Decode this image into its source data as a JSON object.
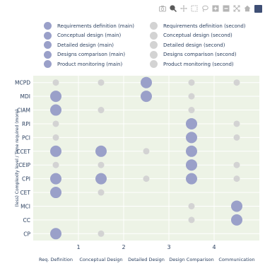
{
  "modebar": {
    "icons": [
      "camera-icon",
      "zoom-icon",
      "pan-icon",
      "zoom-box-icon",
      "lasso-icon",
      "zoom-in-icon",
      "zoom-out-icon",
      "autoscale-icon",
      "home-icon",
      "plotly-logo-icon"
    ]
  },
  "colors": {
    "main": "#9aa0c9",
    "second": "#d3d3d3",
    "plot_bg": "#edf3e6",
    "grid": "#ffffff",
    "text": "#2a3f5f"
  },
  "legend": {
    "main": [
      "Requirements definition (main)",
      "Conceptual design (main)",
      "Detailed design (main)",
      "Designs comparison (main)",
      "Product monitoring (main)"
    ],
    "second": [
      "Requirements definition (second)",
      "Conceptual design (second)",
      "Detailed design (second)",
      "Designs comparison (second)",
      "Product monitoring (second)"
    ]
  },
  "chart_data": {
    "type": "scatter",
    "ylabel": "(less)     Complexity level  /  Time required    (more)",
    "x_tick_values": [
      "1",
      "2",
      "3",
      "4"
    ],
    "x_categories": [
      "Req. Definition",
      "Conceptual Design",
      "Detailed Design",
      "Design Comparison",
      "Communication"
    ],
    "x_category_positions": [
      0.5,
      1.5,
      2.5,
      3.5,
      4.5
    ],
    "xlim": [
      0,
      5
    ],
    "y_categories": [
      "CP",
      "CC",
      "MCI",
      "CET",
      "CPI",
      "CEIP",
      "CCET",
      "PCI",
      "RPI",
      "CIAM",
      "MDI",
      "MCPD"
    ],
    "points": [
      {
        "y": "MCPD",
        "x": 0.5,
        "kind": "second"
      },
      {
        "y": "MCPD",
        "x": 1.5,
        "kind": "second"
      },
      {
        "y": "MCPD",
        "x": 2.5,
        "kind": "main"
      },
      {
        "y": "MCPD",
        "x": 3.5,
        "kind": "second"
      },
      {
        "y": "MCPD",
        "x": 4.5,
        "kind": "second"
      },
      {
        "y": "MDI",
        "x": 0.5,
        "kind": "main"
      },
      {
        "y": "MDI",
        "x": 2.5,
        "kind": "main"
      },
      {
        "y": "MDI",
        "x": 3.5,
        "kind": "second"
      },
      {
        "y": "CIAM",
        "x": 0.5,
        "kind": "main"
      },
      {
        "y": "CIAM",
        "x": 1.5,
        "kind": "second"
      },
      {
        "y": "CIAM",
        "x": 3.5,
        "kind": "second"
      },
      {
        "y": "RPI",
        "x": 0.5,
        "kind": "second"
      },
      {
        "y": "RPI",
        "x": 3.5,
        "kind": "main"
      },
      {
        "y": "RPI",
        "x": 4.5,
        "kind": "second"
      },
      {
        "y": "PCI",
        "x": 0.5,
        "kind": "second"
      },
      {
        "y": "PCI",
        "x": 3.5,
        "kind": "main"
      },
      {
        "y": "PCI",
        "x": 4.5,
        "kind": "second"
      },
      {
        "y": "CCET",
        "x": 0.5,
        "kind": "main"
      },
      {
        "y": "CCET",
        "x": 1.5,
        "kind": "main"
      },
      {
        "y": "CCET",
        "x": 2.5,
        "kind": "second"
      },
      {
        "y": "CCET",
        "x": 3.5,
        "kind": "main"
      },
      {
        "y": "CEIP",
        "x": 0.5,
        "kind": "second"
      },
      {
        "y": "CEIP",
        "x": 1.5,
        "kind": "second"
      },
      {
        "y": "CEIP",
        "x": 3.5,
        "kind": "main"
      },
      {
        "y": "CEIP",
        "x": 4.5,
        "kind": "second"
      },
      {
        "y": "CPI",
        "x": 0.5,
        "kind": "main"
      },
      {
        "y": "CPI",
        "x": 1.5,
        "kind": "main"
      },
      {
        "y": "CPI",
        "x": 2.5,
        "kind": "second"
      },
      {
        "y": "CPI",
        "x": 3.5,
        "kind": "main"
      },
      {
        "y": "CPI",
        "x": 4.5,
        "kind": "second"
      },
      {
        "y": "CET",
        "x": 0.5,
        "kind": "main"
      },
      {
        "y": "CET",
        "x": 1.5,
        "kind": "second"
      },
      {
        "y": "MCI",
        "x": 3.5,
        "kind": "second"
      },
      {
        "y": "MCI",
        "x": 4.5,
        "kind": "main"
      },
      {
        "y": "CC",
        "x": 3.5,
        "kind": "second"
      },
      {
        "y": "CC",
        "x": 4.5,
        "kind": "main"
      },
      {
        "y": "CP",
        "x": 0.5,
        "kind": "main"
      },
      {
        "y": "CP",
        "x": 1.5,
        "kind": "second"
      }
    ],
    "grid": true,
    "legend_position": "top"
  }
}
